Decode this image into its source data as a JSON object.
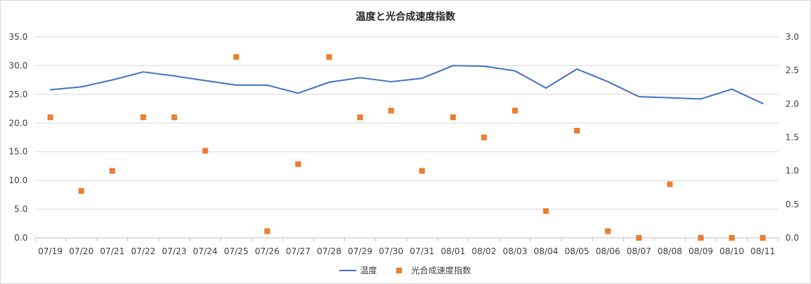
{
  "chart_data": {
    "type": "line",
    "title": "温度と光合成速度指数",
    "categories": [
      "07/19",
      "07/20",
      "07/21",
      "07/22",
      "07/23",
      "07/24",
      "07/25",
      "07/26",
      "07/27",
      "07/28",
      "07/29",
      "07/30",
      "07/31",
      "08/01",
      "08/02",
      "08/03",
      "08/04",
      "08/05",
      "08/06",
      "08/07",
      "08/08",
      "08/09",
      "08/10",
      "08/11"
    ],
    "y_left": {
      "ylim": [
        0,
        35
      ],
      "ticks": [
        "0.0",
        "5.0",
        "10.0",
        "15.0",
        "20.0",
        "25.0",
        "30.0",
        "35.0"
      ]
    },
    "y_right": {
      "ylim": [
        0,
        3
      ],
      "ticks": [
        "0.0",
        "0.5",
        "1.0",
        "1.5",
        "2.0",
        "2.5",
        "3.0"
      ]
    },
    "series": [
      {
        "name": "温度",
        "type": "line",
        "axis": "left",
        "color": "#4472c4",
        "values": [
          25.8,
          26.3,
          27.5,
          28.9,
          28.2,
          27.4,
          26.6,
          26.6,
          25.2,
          27.1,
          27.9,
          27.2,
          27.8,
          30.0,
          29.9,
          29.1,
          26.1,
          29.4,
          27.2,
          24.6,
          24.4,
          24.2,
          25.9,
          23.4
        ]
      },
      {
        "name": "光合成速度指数",
        "type": "scatter",
        "axis": "right",
        "color": "#ed7d31",
        "values": [
          1.8,
          0.7,
          1.0,
          1.8,
          1.8,
          1.3,
          2.7,
          0.1,
          1.1,
          2.7,
          1.8,
          1.9,
          1.0,
          1.8,
          1.5,
          1.9,
          0.4,
          1.6,
          0.1,
          0.0,
          0.8,
          0.0,
          0.0,
          0.0
        ]
      }
    ],
    "grid": true,
    "legend": "bottom"
  }
}
